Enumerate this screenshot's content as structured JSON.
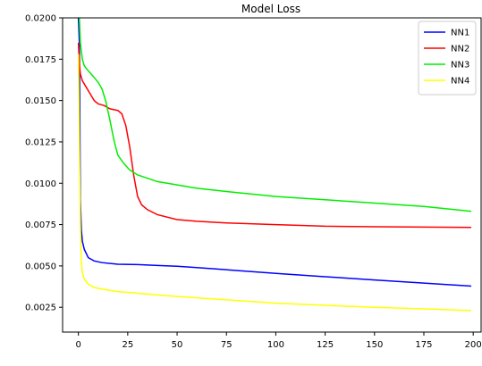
{
  "chart_data": {
    "type": "line",
    "title": "Model Loss",
    "xlabel": "",
    "ylabel": "",
    "xlim": [
      -8,
      204
    ],
    "ylim": [
      0.001,
      0.02
    ],
    "xticks": [
      0,
      25,
      50,
      75,
      100,
      125,
      150,
      175,
      200
    ],
    "yticks": [
      0.0025,
      0.005,
      0.0075,
      0.01,
      0.0125,
      0.015,
      0.0175,
      0.02
    ],
    "ytick_labels": [
      "0.0025",
      "0.0050",
      "0.0075",
      "0.0100",
      "0.0125",
      "0.0150",
      "0.0175",
      "0.0200"
    ],
    "xtick_labels": [
      "0",
      "25",
      "50",
      "75",
      "100",
      "125",
      "150",
      "175",
      "200"
    ],
    "grid": false,
    "legend_position": "top-right",
    "series": [
      {
        "name": "NN1",
        "color": "#0000ff",
        "x": [
          0,
          0.5,
          1,
          1.5,
          2,
          3,
          5,
          8,
          12,
          20,
          30,
          40,
          50,
          60,
          75,
          100,
          125,
          150,
          175,
          199
        ],
        "y": [
          0.02,
          0.0185,
          0.009,
          0.0072,
          0.0065,
          0.006,
          0.0055,
          0.0053,
          0.0052,
          0.0051,
          0.00508,
          0.00503,
          0.00498,
          0.0049,
          0.00477,
          0.00455,
          0.00435,
          0.00415,
          0.00396,
          0.00378
        ]
      },
      {
        "name": "NN2",
        "color": "#ff0000",
        "x": [
          0,
          0.5,
          1,
          2,
          4,
          6,
          8,
          10,
          13,
          16,
          20,
          22,
          24,
          26,
          28,
          30,
          32,
          35,
          40,
          50,
          60,
          75,
          100,
          125,
          150,
          175,
          199
        ],
        "y": [
          0.0185,
          0.0172,
          0.0166,
          0.0162,
          0.0158,
          0.0154,
          0.015,
          0.0148,
          0.0147,
          0.0145,
          0.0144,
          0.0142,
          0.0135,
          0.0122,
          0.0105,
          0.0092,
          0.0087,
          0.0084,
          0.0081,
          0.0078,
          0.0077,
          0.0076,
          0.0075,
          0.0074,
          0.00737,
          0.00735,
          0.00733
        ]
      },
      {
        "name": "NN3",
        "color": "#00ee00",
        "x": [
          0,
          0.5,
          1,
          2,
          3,
          5,
          8,
          10,
          12,
          14,
          16,
          18,
          20,
          23,
          26,
          30,
          35,
          40,
          50,
          60,
          75,
          100,
          125,
          150,
          175,
          199
        ],
        "y": [
          0.0205,
          0.02,
          0.0185,
          0.0175,
          0.0171,
          0.0168,
          0.0164,
          0.0161,
          0.0157,
          0.0149,
          0.0138,
          0.0126,
          0.0117,
          0.0112,
          0.0108,
          0.0105,
          0.0103,
          0.0101,
          0.0099,
          0.0097,
          0.0095,
          0.0092,
          0.009,
          0.0088,
          0.0086,
          0.0083
        ]
      },
      {
        "name": "NN4",
        "color": "#ffff00",
        "x": [
          0,
          0.5,
          1,
          1.5,
          2,
          3,
          5,
          8,
          12,
          20,
          30,
          40,
          50,
          75,
          100,
          125,
          150,
          175,
          199
        ],
        "y": [
          0.0178,
          0.0125,
          0.0075,
          0.0052,
          0.0046,
          0.0042,
          0.0039,
          0.0037,
          0.0036,
          0.00345,
          0.00335,
          0.00325,
          0.00315,
          0.00295,
          0.00275,
          0.00262,
          0.0025,
          0.0024,
          0.0023
        ]
      }
    ]
  }
}
